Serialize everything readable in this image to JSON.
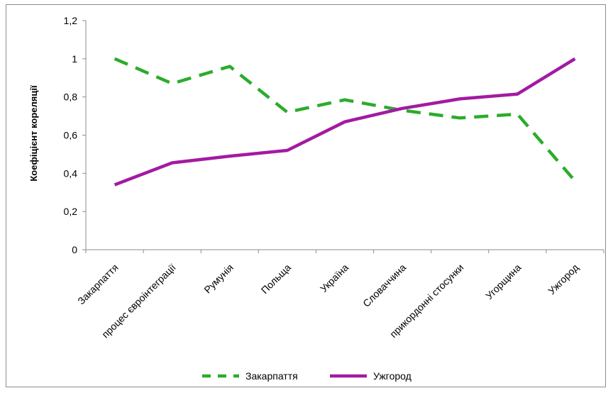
{
  "chart_data": {
    "type": "line",
    "title": "",
    "xlabel": "",
    "ylabel": "Коефіцієнт кореляції",
    "ylim": [
      0,
      1.2
    ],
    "yticks": [
      "0",
      "0,2",
      "0,4",
      "0,6",
      "0,8",
      "1",
      "1,2"
    ],
    "categories": [
      "Закарпаття",
      "процес євроінтеграції",
      "Румунія",
      "Польща",
      "Україна",
      "Словаччина",
      "прикордонні стосунки",
      "Угорщина",
      "Ужгород"
    ],
    "grid": false,
    "legend_position": "bottom",
    "series": [
      {
        "name": "Закарпаття",
        "color": "#2bac2b",
        "style": "dashed",
        "values": [
          1.0,
          0.87,
          0.96,
          0.72,
          0.785,
          0.73,
          0.69,
          0.71,
          0.36
        ]
      },
      {
        "name": "Ужгород",
        "color": "#a31aa3",
        "style": "solid",
        "values": [
          0.34,
          0.455,
          0.49,
          0.52,
          0.67,
          0.74,
          0.79,
          0.815,
          1.0
        ]
      }
    ]
  }
}
